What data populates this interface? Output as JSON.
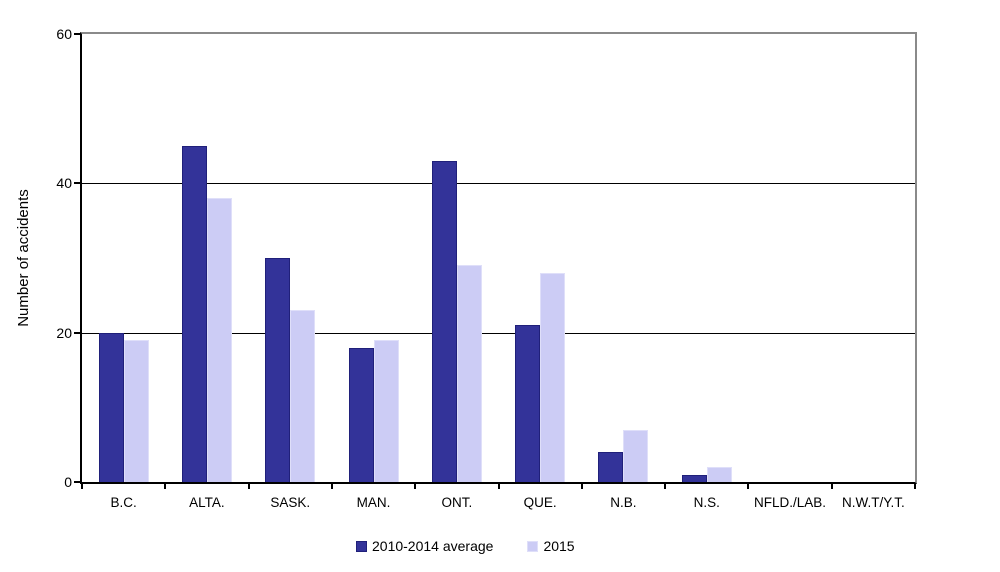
{
  "chart_data": {
    "type": "bar",
    "title": "",
    "xlabel": "",
    "ylabel": "Number of accidents",
    "ylim": [
      0,
      60
    ],
    "yticks": [
      0,
      20,
      40,
      60
    ],
    "grid": "horizontal",
    "legend_position": "bottom",
    "categories": [
      "B.C.",
      "ALTA.",
      "SASK.",
      "MAN.",
      "ONT.",
      "QUE.",
      "N.B.",
      "N.S.",
      "NFLD./LAB.",
      "N.W.T/Y.T."
    ],
    "series": [
      {
        "name": "2010-2014 average",
        "color": "#333399",
        "border_color": "#20207a",
        "values": [
          20,
          45,
          30,
          18,
          43,
          21,
          4,
          1,
          0,
          0
        ]
      },
      {
        "name": "2015",
        "color": "#ccccf5",
        "border_color": "#dfdff9",
        "values": [
          19,
          38,
          23,
          19,
          29,
          28,
          7,
          2,
          0,
          0
        ]
      }
    ]
  },
  "frame_colors": {
    "axis": "#000000",
    "outer_frame": "#8a8a8a",
    "background": "#ffffff"
  }
}
